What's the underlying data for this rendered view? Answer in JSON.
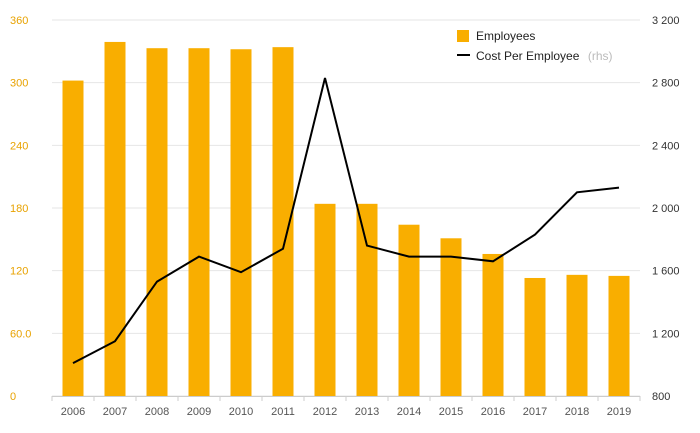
{
  "chart_data": {
    "type": "bar+line",
    "categories": [
      "2006",
      "2007",
      "2008",
      "2009",
      "2010",
      "2011",
      "2012",
      "2013",
      "2014",
      "2015",
      "2016",
      "2017",
      "2018",
      "2019"
    ],
    "series": [
      {
        "name": "Employees",
        "type": "bar",
        "axis": "left",
        "color": "#f9ae00",
        "values": [
          302,
          339,
          333,
          333,
          332,
          334,
          184,
          184,
          164,
          151,
          136,
          113,
          116,
          115
        ]
      },
      {
        "name": "Cost Per Employee",
        "legend_note": "(rhs)",
        "type": "line",
        "axis": "right",
        "color": "#000000",
        "values": [
          1010,
          1150,
          1530,
          1690,
          1590,
          1740,
          2830,
          1760,
          1690,
          1690,
          1660,
          1830,
          2100,
          2130
        ]
      }
    ],
    "y_left": {
      "min": 0,
      "max": 360,
      "ticks": [
        "0",
        "60.0",
        "120",
        "180",
        "240",
        "300",
        "360"
      ]
    },
    "y_right": {
      "min": 800,
      "max": 3200,
      "ticks": [
        "800",
        "1 200",
        "1 600",
        "2 000",
        "2 400",
        "2 800",
        "3 200"
      ]
    },
    "grid": true,
    "legend_position": "top-right"
  }
}
